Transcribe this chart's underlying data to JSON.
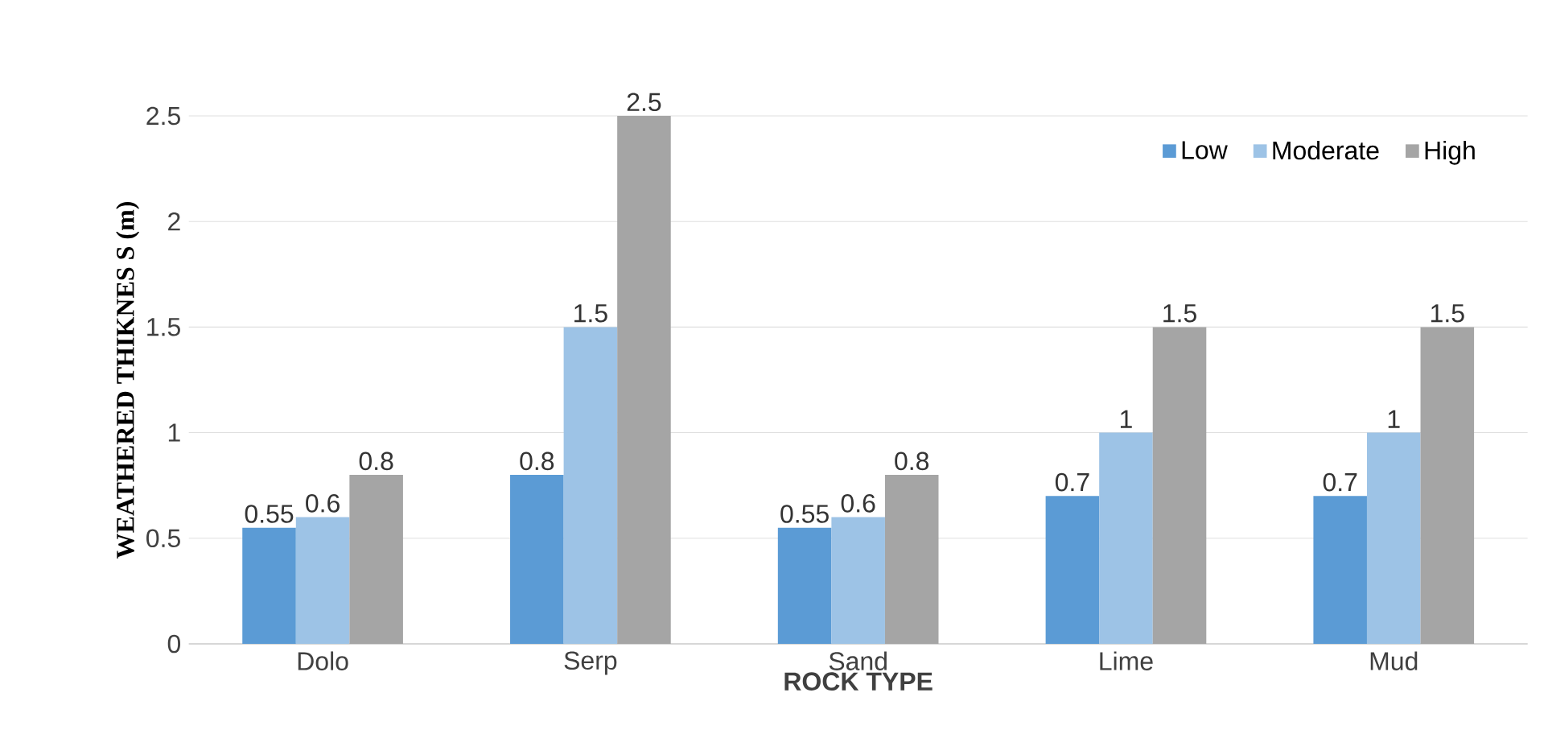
{
  "chart_data": {
    "type": "bar",
    "xlabel": "ROCK TYPE",
    "ylabel": "WEATHERED THIKNES S (m)",
    "categories": [
      "Dolo",
      "Serp",
      "Sand",
      "Lime",
      "Mud"
    ],
    "series": [
      {
        "name": "Low",
        "color": "#5b9bd5",
        "values": [
          0.55,
          0.8,
          0.55,
          0.7,
          0.7
        ]
      },
      {
        "name": "Moderate",
        "color": "#9dc3e6",
        "values": [
          0.6,
          1.5,
          0.6,
          1,
          1
        ]
      },
      {
        "name": "High",
        "color": "#a5a5a5",
        "values": [
          0.8,
          2.5,
          0.8,
          1.5,
          1.5
        ]
      }
    ],
    "ylim": [
      0,
      2.5
    ],
    "yticks": [
      0,
      0.5,
      1,
      1.5,
      2,
      2.5
    ],
    "grid": "y",
    "legend": "top right",
    "data_labels": true
  }
}
